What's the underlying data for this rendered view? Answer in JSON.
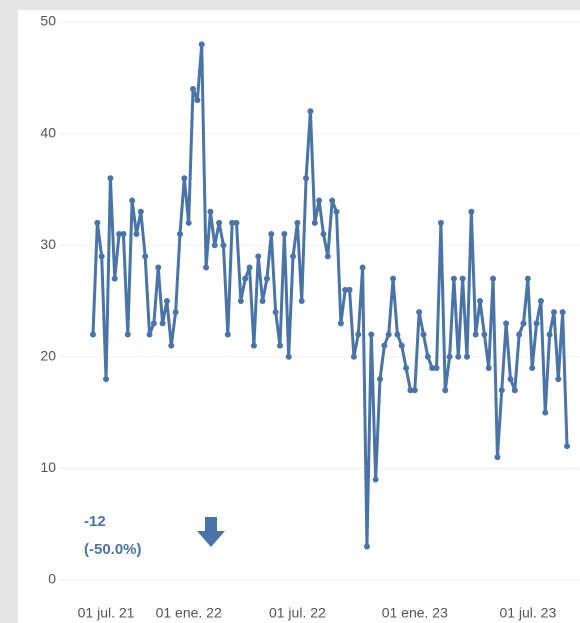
{
  "chart_data": {
    "type": "line",
    "categories": [
      null,
      null,
      null,
      "01 jul. 21",
      null,
      null,
      null,
      null,
      null,
      null,
      null,
      null,
      null,
      null,
      null,
      null,
      null,
      null,
      null,
      null,
      null,
      null,
      "01 ene. 22",
      null,
      null,
      null,
      null,
      null,
      null,
      null,
      null,
      null,
      null,
      null,
      null,
      null,
      null,
      null,
      null,
      null,
      null,
      null,
      null,
      null,
      null,
      null,
      null,
      "01 jul. 22",
      null,
      null,
      null,
      null,
      null,
      null,
      null,
      null,
      null,
      null,
      null,
      null,
      null,
      null,
      null,
      null,
      null,
      null,
      null,
      null,
      null,
      null,
      null,
      null,
      null,
      null,
      "01 ene. 23",
      null,
      null,
      null,
      null,
      null,
      null,
      null,
      null,
      null,
      null,
      null,
      null,
      null,
      null,
      null,
      null,
      null,
      null,
      null,
      null,
      null,
      null,
      null,
      null,
      null,
      "01 jul. 23",
      null,
      null,
      null,
      null,
      null,
      null,
      null,
      null,
      null
    ],
    "series": [
      {
        "color": "#4a74a8",
        "values": [
          22,
          32,
          29,
          18,
          36,
          27,
          31,
          31,
          22,
          34,
          31,
          33,
          29,
          22,
          23,
          28,
          23,
          25,
          21,
          24,
          31,
          36,
          32,
          44,
          43,
          48,
          28,
          33,
          30,
          32,
          30,
          22,
          32,
          32,
          25,
          27,
          28,
          21,
          29,
          25,
          27,
          31,
          24,
          21,
          31,
          20,
          29,
          32,
          25,
          36,
          42,
          32,
          34,
          31,
          29,
          34,
          33,
          23,
          26,
          26,
          20,
          22,
          28,
          3,
          22,
          9,
          18,
          21,
          22,
          27,
          22,
          21,
          19,
          17,
          17,
          24,
          22,
          20,
          19,
          19,
          32,
          17,
          20,
          27,
          20,
          27,
          20,
          33,
          22,
          25,
          22,
          19,
          27,
          11,
          17,
          23,
          18,
          17,
          22,
          23,
          27,
          19,
          23,
          25,
          15,
          22,
          24,
          18,
          24,
          12
        ]
      }
    ],
    "ylim": [
      0,
      50
    ],
    "yticks": [
      0,
      10,
      20,
      30,
      40,
      50
    ],
    "grid": true,
    "annotations": [
      "-12",
      "(-50.0%)"
    ]
  }
}
